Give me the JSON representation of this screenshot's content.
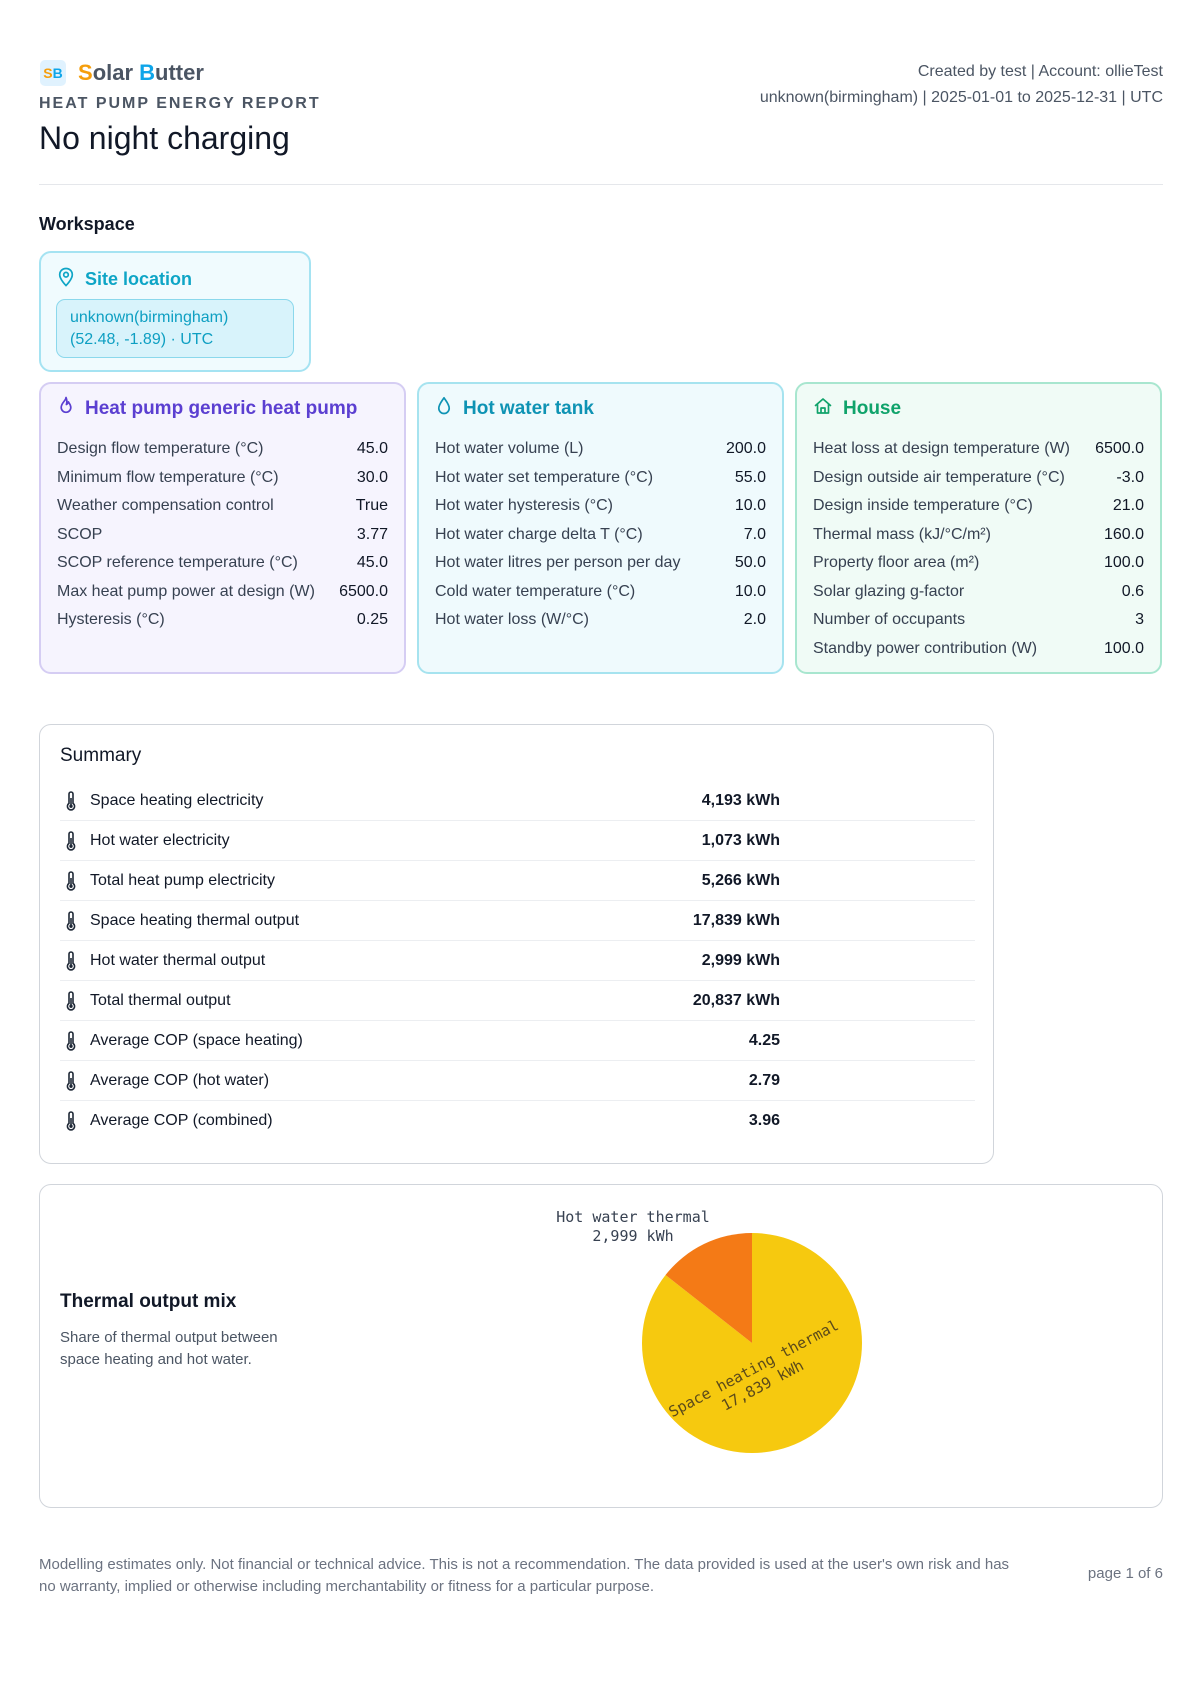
{
  "header": {
    "brand_s": "S",
    "brand_rest1": "olar ",
    "brand_b": "B",
    "brand_rest2": "utter",
    "kicker": "HEAT PUMP ENERGY REPORT",
    "title": "No night charging",
    "meta_line1": "Created by test | Account: ollieTest",
    "meta_line2": "unknown(birmingham) | 2025-01-01 to 2025-12-31 | UTC"
  },
  "workspace": {
    "title": "Workspace",
    "site": {
      "label": "Site location",
      "line1": "unknown(birmingham)",
      "line2": "(52.48, -1.89) · UTC"
    }
  },
  "heat_pump": {
    "title": "Heat pump generic heat pump",
    "rows": [
      {
        "label": "Design flow temperature (°C)",
        "value": "45.0"
      },
      {
        "label": "Minimum flow temperature (°C)",
        "value": "30.0"
      },
      {
        "label": "Weather compensation control",
        "value": "True"
      },
      {
        "label": "SCOP",
        "value": "3.77"
      },
      {
        "label": "SCOP reference temperature (°C)",
        "value": "45.0"
      },
      {
        "label": "Max heat pump power at design (W)",
        "value": "6500.0"
      },
      {
        "label": "Hysteresis (°C)",
        "value": "0.25"
      }
    ]
  },
  "hot_water_tank": {
    "title": "Hot water tank",
    "rows": [
      {
        "label": "Hot water volume (L)",
        "value": "200.0"
      },
      {
        "label": "Hot water set temperature (°C)",
        "value": "55.0"
      },
      {
        "label": "Hot water hysteresis (°C)",
        "value": "10.0"
      },
      {
        "label": "Hot water charge delta T (°C)",
        "value": "7.0"
      },
      {
        "label": "Hot water litres per person per day",
        "value": "50.0"
      },
      {
        "label": "Cold water temperature (°C)",
        "value": "10.0"
      },
      {
        "label": "Hot water loss (W/°C)",
        "value": "2.0"
      }
    ]
  },
  "house": {
    "title": "House",
    "rows": [
      {
        "label": "Heat loss at design temperature (W)",
        "value": "6500.0"
      },
      {
        "label": "Design outside air temperature (°C)",
        "value": "-3.0"
      },
      {
        "label": "Design inside temperature (°C)",
        "value": "21.0"
      },
      {
        "label": "Thermal mass (kJ/°C/m²)",
        "value": "160.0"
      },
      {
        "label": "Property floor area (m²)",
        "value": "100.0"
      },
      {
        "label": "Solar glazing g-factor",
        "value": "0.6"
      },
      {
        "label": "Number of occupants",
        "value": "3"
      },
      {
        "label": "Standby power contribution (W)",
        "value": "100.0"
      }
    ]
  },
  "summary": {
    "title": "Summary",
    "rows": [
      {
        "label": "Space heating electricity",
        "value": "4,193 kWh"
      },
      {
        "label": "Hot water electricity",
        "value": "1,073 kWh"
      },
      {
        "label": "Total heat pump electricity",
        "value": "5,266 kWh"
      },
      {
        "label": "Space heating thermal output",
        "value": "17,839 kWh"
      },
      {
        "label": "Hot water thermal output",
        "value": "2,999 kWh"
      },
      {
        "label": "Total thermal output",
        "value": "20,837 kWh"
      },
      {
        "label": "Average COP (space heating)",
        "value": "4.25"
      },
      {
        "label": "Average COP (hot water)",
        "value": "2.79"
      },
      {
        "label": "Average COP (combined)",
        "value": "3.96"
      }
    ]
  },
  "thermal_mix": {
    "title": "Thermal output mix",
    "description": "Share of thermal output between space heating and hot water."
  },
  "chart_data": {
    "type": "pie",
    "title": "",
    "slices": [
      {
        "label": "Space heating thermal",
        "value": 17839,
        "value_label": "17,839 kWh",
        "color": "#f6c90f"
      },
      {
        "label": "Hot water thermal",
        "value": 2999,
        "value_label": "2,999 kWh",
        "color": "#f47a16"
      }
    ]
  },
  "footer": {
    "disclaimer": "Modelling estimates only. Not financial or technical advice. This is not a recommendation. The data provided is used at the user's own risk and has no warranty, implied or otherwise including merchantability or fitness for a particular purpose.",
    "page": "page 1 of 6"
  },
  "colors": {
    "brand_orange": "#f59e0b",
    "brand_blue": "#0ea5e9",
    "heat_pump_accent": "#5b3fd1",
    "hot_water_accent": "#0e93b4",
    "house_accent": "#10a36b",
    "site_accent": "#0ea5c6"
  },
  "icons": {
    "site": "map-pin-icon",
    "heat_pump": "flame-icon",
    "hot_water": "water-drop-icon",
    "house": "house-icon",
    "summary_row": "thermometer-icon"
  }
}
